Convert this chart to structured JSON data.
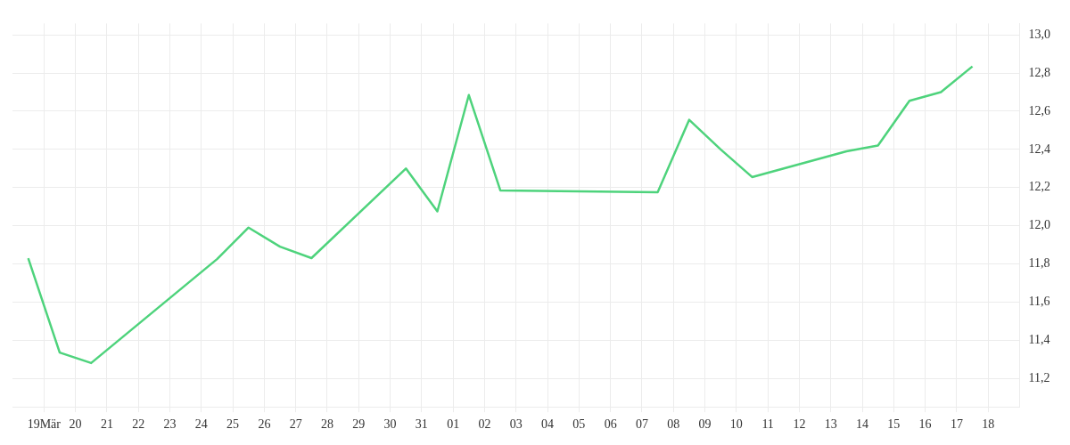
{
  "chart_data": {
    "type": "line",
    "x": [
      "--03-18T12:00",
      "--03-19T12:00",
      "--03-20T12:00",
      "--03-24T12:00",
      "--03-25T12:00",
      "--03-26T12:00",
      "--03-27T12:00",
      "--03-30T12:00",
      "--03-31T12:00",
      "--04-01T12:00",
      "--04-02T12:00",
      "--04-07T12:00",
      "--04-08T12:00",
      "--04-09T12:00",
      "--04-10T12:00",
      "--04-13T12:00",
      "--04-14T12:00",
      "--04-15T12:00",
      "--04-16T12:00",
      "--04-17T12:00"
    ],
    "series": [
      {
        "color": "#4ed37c",
        "values": [
          11.83,
          11.335,
          11.28,
          11.825,
          11.99,
          11.89,
          11.83,
          12.3,
          12.075,
          12.685,
          12.185,
          12.175,
          12.555,
          12.4,
          12.255,
          12.39,
          12.42,
          12.655,
          12.7,
          12.835
        ]
      }
    ],
    "xlim": [
      "--03-18",
      "--04-19"
    ],
    "xticks": [
      {
        "value": "--03-19",
        "label": "19Mär"
      },
      {
        "value": "--03-20",
        "label": "20"
      },
      {
        "value": "--03-21",
        "label": "21"
      },
      {
        "value": "--03-22",
        "label": "22"
      },
      {
        "value": "--03-23",
        "label": "23"
      },
      {
        "value": "--03-24",
        "label": "24"
      },
      {
        "value": "--03-25",
        "label": "25"
      },
      {
        "value": "--03-26",
        "label": "26"
      },
      {
        "value": "--03-27",
        "label": "27"
      },
      {
        "value": "--03-28",
        "label": "28"
      },
      {
        "value": "--03-29",
        "label": "29"
      },
      {
        "value": "--03-30",
        "label": "30"
      },
      {
        "value": "--03-31",
        "label": "31"
      },
      {
        "value": "--04-01",
        "label": "01"
      },
      {
        "value": "--04-02",
        "label": "02"
      },
      {
        "value": "--04-03",
        "label": "03"
      },
      {
        "value": "--04-04",
        "label": "04"
      },
      {
        "value": "--04-05",
        "label": "05"
      },
      {
        "value": "--04-06",
        "label": "06"
      },
      {
        "value": "--04-07",
        "label": "07"
      },
      {
        "value": "--04-08",
        "label": "08"
      },
      {
        "value": "--04-09",
        "label": "09"
      },
      {
        "value": "--04-10",
        "label": "10"
      },
      {
        "value": "--04-11",
        "label": "11"
      },
      {
        "value": "--04-12",
        "label": "12"
      },
      {
        "value": "--04-13",
        "label": "13"
      },
      {
        "value": "--04-14",
        "label": "14"
      },
      {
        "value": "--04-15",
        "label": "15"
      },
      {
        "value": "--04-16",
        "label": "16"
      },
      {
        "value": "--04-17",
        "label": "17"
      },
      {
        "value": "--04-18",
        "label": "18"
      }
    ],
    "ylim": [
      11.05,
      13.06
    ],
    "yticks": [
      {
        "value": 11.2,
        "label": "11,2"
      },
      {
        "value": 11.4,
        "label": "11,4"
      },
      {
        "value": 11.6,
        "label": "11,6"
      },
      {
        "value": 11.8,
        "label": "11,8"
      },
      {
        "value": 12.0,
        "label": "12,0"
      },
      {
        "value": 12.2,
        "label": "12,2"
      },
      {
        "value": 12.4,
        "label": "12,4"
      },
      {
        "value": 12.6,
        "label": "12,6"
      },
      {
        "value": 12.8,
        "label": "12,8"
      },
      {
        "value": 13.0,
        "label": "13,0"
      }
    ],
    "grid": true,
    "legend": false,
    "marker": "none",
    "line_style": "solid"
  }
}
